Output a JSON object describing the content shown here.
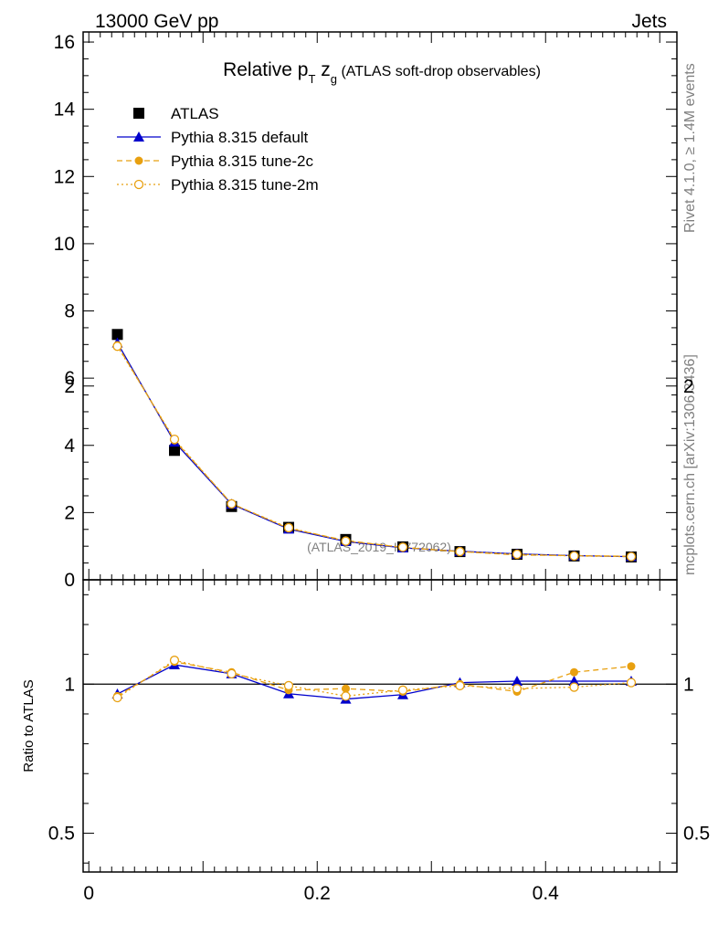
{
  "header": {
    "left": "13000 GeV pp",
    "right": "Jets",
    "rivet": "Rivet 4.1.0, ≥ 1.4M events",
    "mcplots": "mcplots.cern.ch [arXiv:1306.3436]",
    "analysis": "(ATLAS_2019_I1772062)"
  },
  "chart_data": {
    "type": "scatter",
    "title": {
      "main": "Relative p",
      "sub1": "T",
      "mid": " z",
      "sub2": "g",
      "rest": " (ATLAS soft-drop observables)"
    },
    "ylabel_ratio": "Ratio to ATLAS",
    "xlim": [
      -0.005,
      0.515
    ],
    "ylim_main": [
      0,
      16.3
    ],
    "ylim_ratio": [
      0.37,
      1.35
    ],
    "x_ticks": [
      {
        "value": 0,
        "label": "0"
      },
      {
        "value": 0.2,
        "label": "0.2"
      },
      {
        "value": 0.4,
        "label": "0.4"
      }
    ],
    "y_ticks_main": [
      {
        "value": 0,
        "label": "0"
      },
      {
        "value": 2,
        "label": "2"
      },
      {
        "value": 4,
        "label": "4"
      },
      {
        "value": 6,
        "label": "6"
      },
      {
        "value": 8,
        "label": "8"
      },
      {
        "value": 10,
        "label": "10"
      },
      {
        "value": 12,
        "label": "12"
      },
      {
        "value": 14,
        "label": "14"
      },
      {
        "value": 16,
        "label": "16"
      }
    ],
    "y_ticks_ratio": [
      {
        "value": 0.5,
        "label": "0.5"
      },
      {
        "value": 1,
        "label": "1"
      },
      {
        "value": 2,
        "label": "2"
      }
    ],
    "x": [
      0.025,
      0.075,
      0.125,
      0.175,
      0.225,
      0.275,
      0.325,
      0.375,
      0.425,
      0.475
    ],
    "series": [
      {
        "name": "ATLAS",
        "color": "#000000",
        "marker": "square",
        "line": "none",
        "values": [
          7.3,
          3.85,
          2.18,
          1.56,
          1.2,
          0.98,
          0.84,
          0.76,
          0.71,
          0.68
        ]
      },
      {
        "name": "Pythia 8.315 default",
        "color": "#0000cc",
        "marker": "triangle",
        "line": "solid",
        "values": [
          7.05,
          4.1,
          2.25,
          1.51,
          1.14,
          0.95,
          0.85,
          0.77,
          0.72,
          0.69
        ],
        "ratio": [
          0.967,
          1.065,
          1.035,
          0.968,
          0.95,
          0.965,
          1.005,
          1.01,
          1.01,
          1.01
        ]
      },
      {
        "name": "Pythia 8.315 tune-2c",
        "color": "#e8a010",
        "marker": "circle-filled",
        "line": "dashed",
        "values": [
          6.98,
          4.15,
          2.27,
          1.53,
          1.17,
          0.96,
          0.84,
          0.74,
          0.72,
          0.7
        ],
        "ratio": [
          0.96,
          1.075,
          1.04,
          0.98,
          0.985,
          0.975,
          1.0,
          0.975,
          1.04,
          1.06
        ]
      },
      {
        "name": "Pythia 8.315 tune-2m",
        "color": "#e8a010",
        "marker": "circle-open",
        "line": "dotted",
        "values": [
          6.95,
          4.18,
          2.26,
          1.55,
          1.15,
          0.97,
          0.84,
          0.76,
          0.71,
          0.69
        ],
        "ratio": [
          0.955,
          1.08,
          1.035,
          0.995,
          0.96,
          0.98,
          0.995,
          0.985,
          0.99,
          1.005
        ]
      }
    ]
  }
}
